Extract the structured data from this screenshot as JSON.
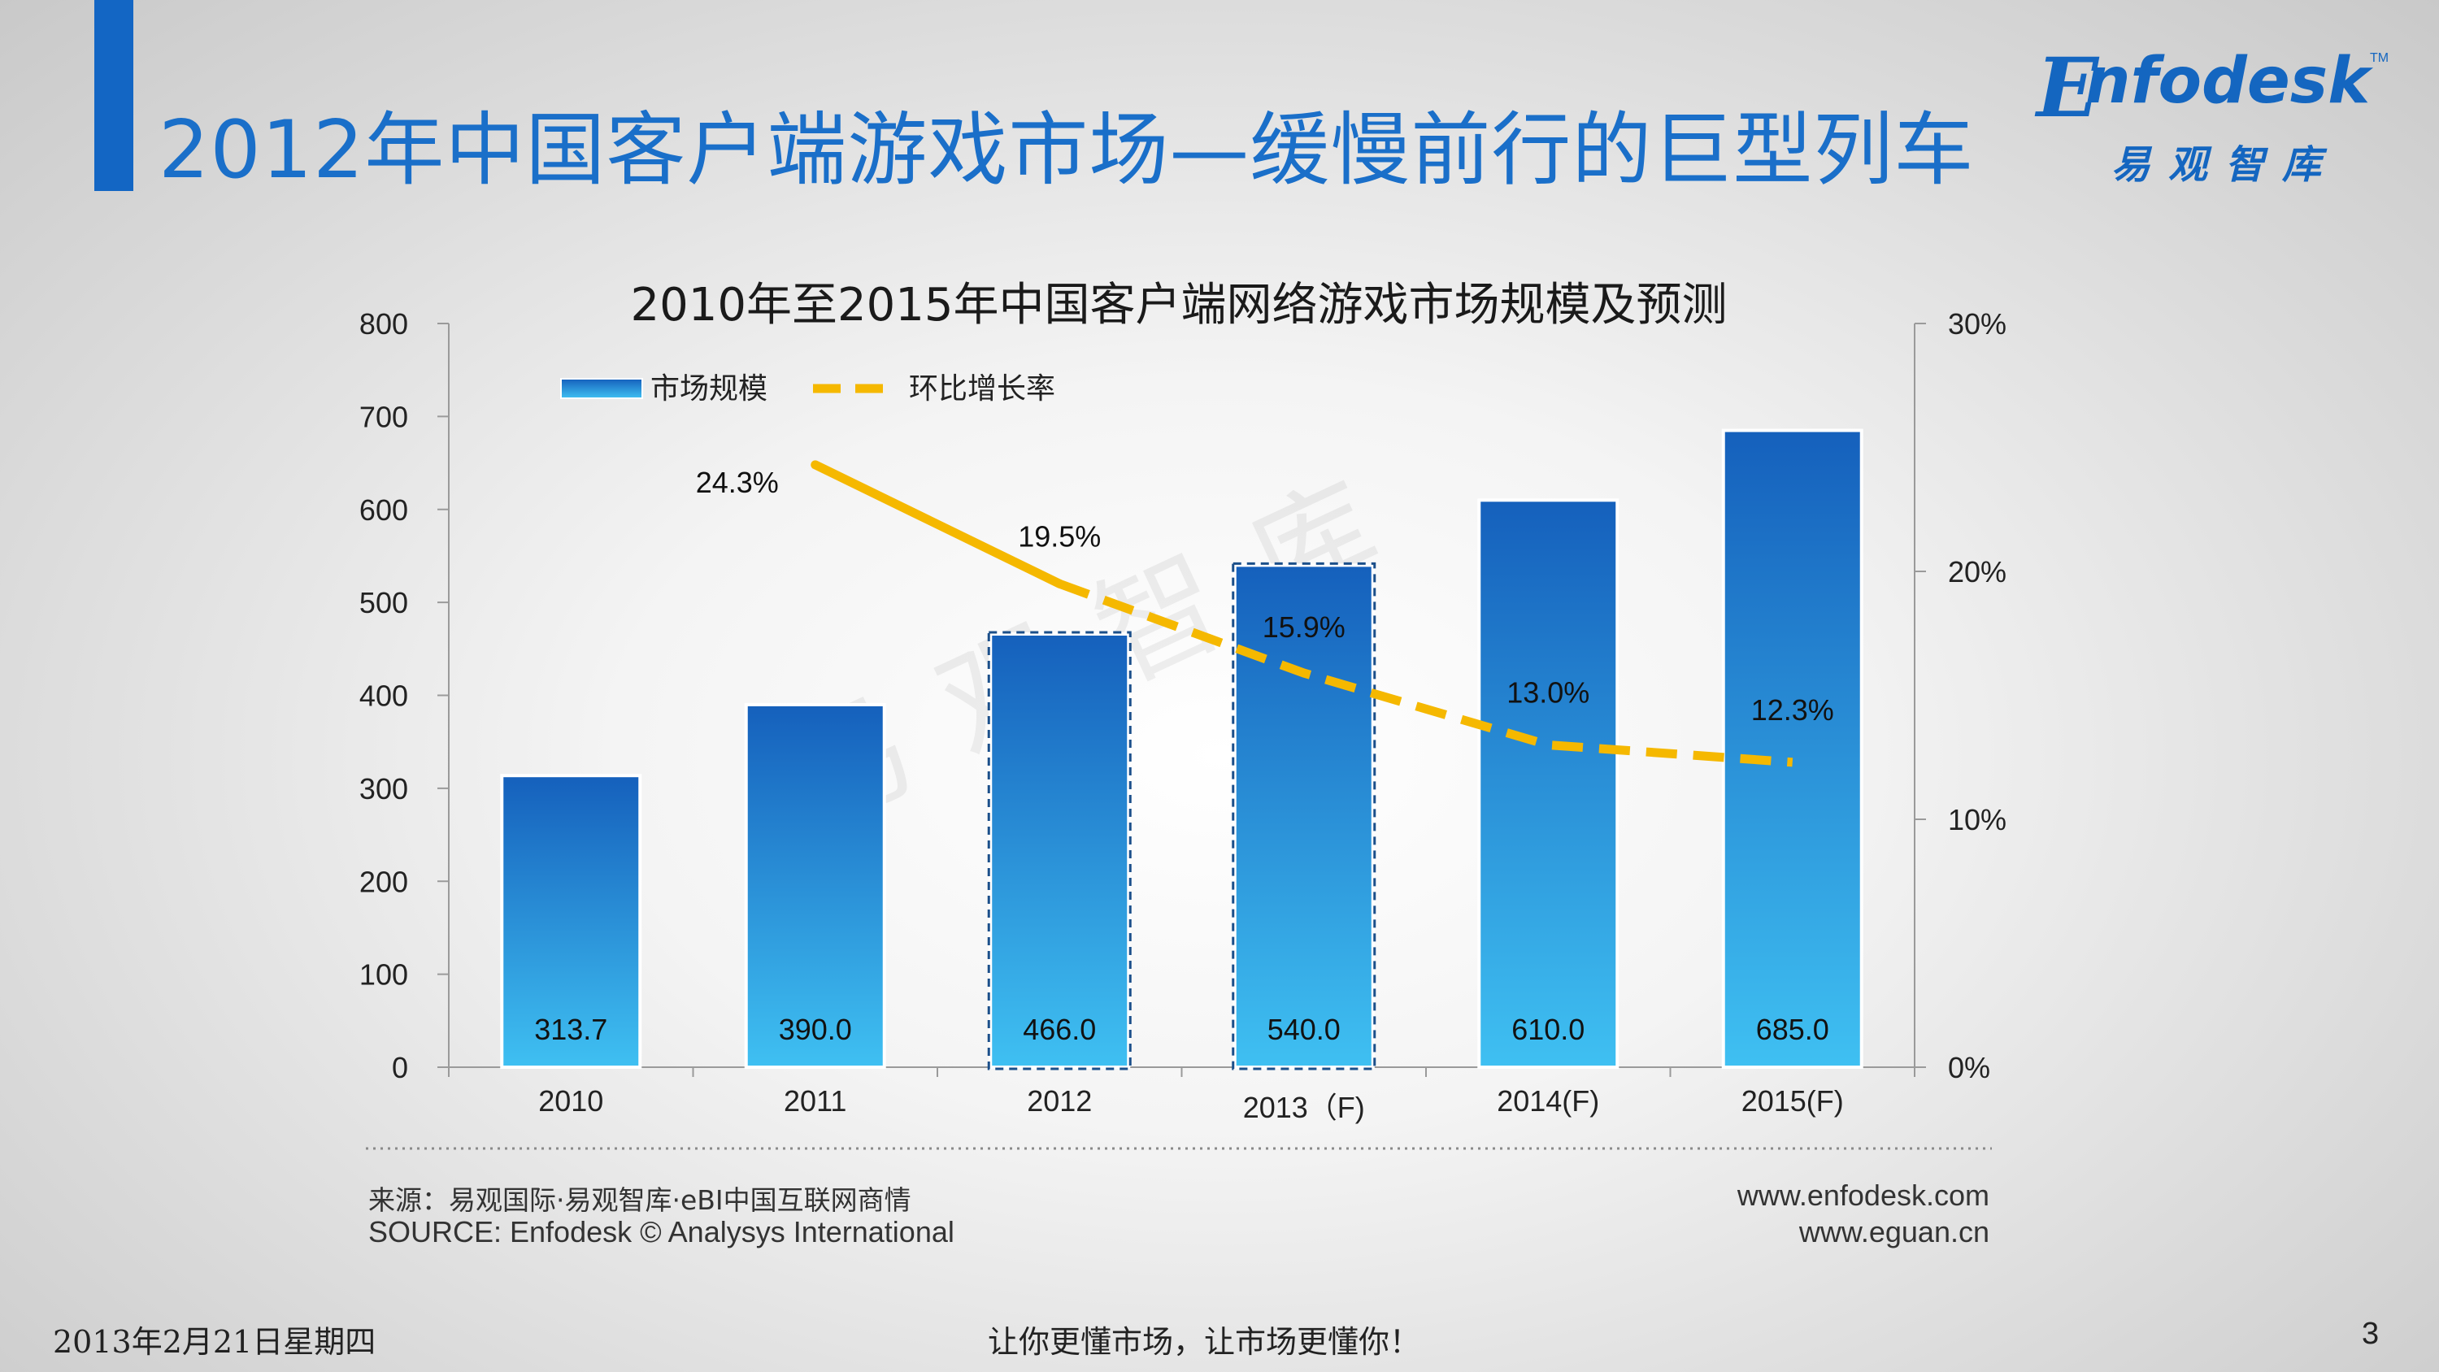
{
  "header": {
    "title": "2012年中国客户端游戏市场—缓慢前行的巨型列车"
  },
  "logo": {
    "word": "nfodesk",
    "initial": "E",
    "trademark": "TM",
    "subtitle": "易观智库"
  },
  "watermark": "易观智库",
  "colors": {
    "accent": "#1366c4",
    "bar_top": "#1560bc",
    "bar_bottom": "#3fc0f2",
    "line": "#f5b800"
  },
  "chart_data": {
    "type": "bar",
    "title": "2010年至2015年中国客户端网络游戏市场规模及预测",
    "categories": [
      "2010",
      "2011",
      "2012",
      "2013（F)",
      "2014(F)",
      "2015(F)"
    ],
    "series": [
      {
        "name": "市场规模",
        "type": "bar",
        "axis": "left",
        "values": [
          313.7,
          390.0,
          466.0,
          540.0,
          610.0,
          685.0
        ],
        "labels": [
          "313.7",
          "390.0",
          "466.0",
          "540.0",
          "610.0",
          "685.0"
        ]
      },
      {
        "name": "环比增长率",
        "type": "line",
        "axis": "right",
        "style": "solid then dashed",
        "values": [
          null,
          24.3,
          19.5,
          15.9,
          13.0,
          12.3
        ],
        "labels": [
          "",
          "24.3%",
          "19.5%",
          "15.9%",
          "13.0%",
          "12.3%"
        ]
      }
    ],
    "highlighted_categories": [
      "2012",
      "2013（F)"
    ],
    "ylim": [
      0,
      800
    ],
    "y_ticks": [
      "0",
      "100",
      "200",
      "300",
      "400",
      "500",
      "600",
      "700",
      "800"
    ],
    "y2lim": [
      0,
      30
    ],
    "y2_ticks": [
      "0%",
      "10%",
      "20%",
      "30%"
    ],
    "legend": {
      "position": "top-left",
      "bar_label": "市场规模",
      "line_label": "环比增长率"
    }
  },
  "source": {
    "cn": "来源：易观国际·易观智库·eBI中国互联网商情",
    "en": "SOURCE: Enfodesk © Analysys International",
    "url1": "www.enfodesk.com",
    "url2": "www.eguan.cn"
  },
  "footer": {
    "date": "2013年2月21日星期四",
    "slogan": "让你更懂市场，让市场更懂你！",
    "page": "3"
  }
}
